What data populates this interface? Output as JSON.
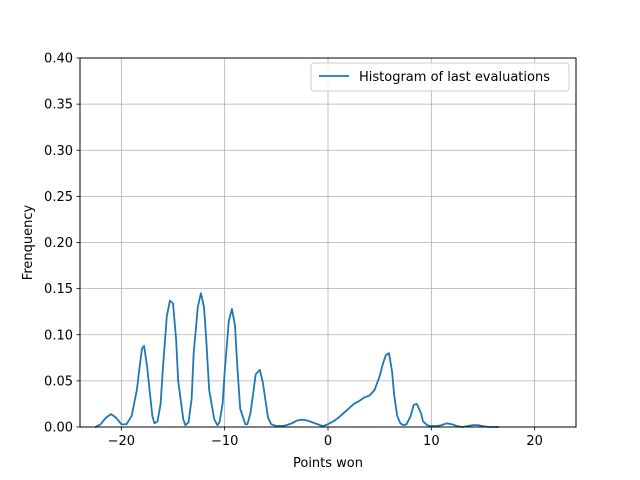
{
  "chart_data": {
    "type": "line",
    "xlabel": "Points won",
    "ylabel": "Frenquency",
    "xlim": [
      -24,
      24
    ],
    "ylim": [
      0,
      0.4
    ],
    "xticks": [
      -20,
      -10,
      0,
      10,
      20
    ],
    "xtick_labels": [
      "−20",
      "−10",
      "0",
      "10",
      "20"
    ],
    "yticks": [
      0,
      0.05,
      0.1,
      0.15,
      0.2,
      0.25,
      0.3,
      0.35,
      0.4
    ],
    "ytick_labels": [
      "0.00",
      "0.05",
      "0.10",
      "0.15",
      "0.20",
      "0.25",
      "0.30",
      "0.35",
      "0.40"
    ],
    "grid": true,
    "legend_position": "top-right",
    "series": [
      {
        "name": "Histogram of last evaluations",
        "color": "#1f77b4",
        "x": [
          -22.5,
          -22,
          -21.5,
          -21,
          -20.5,
          -20,
          -19.5,
          -19,
          -18.5,
          -18.2,
          -18,
          -17.8,
          -17.5,
          -17,
          -16.8,
          -16.5,
          -16.2,
          -16,
          -15.6,
          -15.3,
          -15,
          -14.7,
          -14.5,
          -14,
          -13.8,
          -13.5,
          -13.2,
          -13,
          -12.6,
          -12.3,
          -12,
          -11.8,
          -11.5,
          -11,
          -10.7,
          -10.5,
          -10.2,
          -10,
          -9.6,
          -9.3,
          -9,
          -8.8,
          -8.5,
          -8,
          -7.8,
          -7.5,
          -7.2,
          -7,
          -6.6,
          -6.3,
          -6,
          -5.8,
          -5.5,
          -5,
          -4.5,
          -4,
          -3.5,
          -3,
          -2.5,
          -2,
          -1.5,
          -1,
          -0.5,
          0,
          0.5,
          1,
          1.5,
          2,
          2.5,
          3,
          3.5,
          4,
          4.5,
          5,
          5.3,
          5.6,
          5.9,
          6.2,
          6.4,
          6.7,
          7,
          7.3,
          7.6,
          8,
          8.3,
          8.6,
          9,
          9.2,
          9.6,
          10,
          10.5,
          11,
          11.5,
          12,
          12.5,
          13,
          13.5,
          14,
          14.5,
          15,
          15.5,
          16,
          16.5
        ],
        "values": [
          0.0,
          0.003,
          0.01,
          0.014,
          0.01,
          0.003,
          0.003,
          0.012,
          0.04,
          0.068,
          0.085,
          0.088,
          0.065,
          0.012,
          0.004,
          0.006,
          0.025,
          0.06,
          0.12,
          0.137,
          0.134,
          0.095,
          0.05,
          0.008,
          0.002,
          0.005,
          0.03,
          0.08,
          0.13,
          0.145,
          0.13,
          0.098,
          0.04,
          0.008,
          0.002,
          0.005,
          0.025,
          0.06,
          0.115,
          0.128,
          0.11,
          0.07,
          0.02,
          0.003,
          0.003,
          0.015,
          0.04,
          0.057,
          0.062,
          0.048,
          0.025,
          0.01,
          0.003,
          0.001,
          0.001,
          0.002,
          0.004,
          0.007,
          0.008,
          0.007,
          0.005,
          0.003,
          0.001,
          0.003,
          0.006,
          0.01,
          0.015,
          0.02,
          0.025,
          0.028,
          0.032,
          0.034,
          0.04,
          0.055,
          0.068,
          0.078,
          0.08,
          0.06,
          0.035,
          0.012,
          0.004,
          0.002,
          0.003,
          0.012,
          0.024,
          0.025,
          0.015,
          0.006,
          0.002,
          0.001,
          0.001,
          0.002,
          0.004,
          0.003,
          0.001,
          0.0,
          0.001,
          0.002,
          0.002,
          0.001,
          0.0,
          0.0,
          0.0
        ]
      }
    ]
  }
}
